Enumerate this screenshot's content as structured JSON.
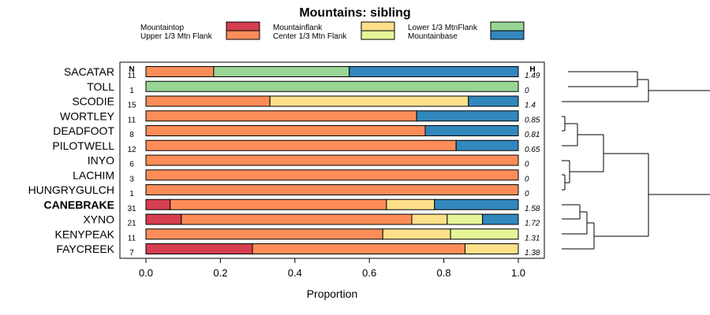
{
  "chart_data": {
    "type": "bar",
    "orientation": "horizontal-stacked",
    "title": "Mountains: sibling",
    "xlabel": "Proportion",
    "ylabel": "",
    "xlim": [
      0,
      1
    ],
    "xticks": [
      "0.0",
      "0.2",
      "0.4",
      "0.6",
      "0.8",
      "1.0"
    ],
    "xtick_values": [
      0,
      0.2,
      0.4,
      0.6,
      0.8,
      1.0
    ],
    "n_header": "N",
    "h_header": "H",
    "highlight_category": "CANEBRAKE",
    "legend": [
      {
        "label": "Mountaintop",
        "color": "#d53e4f"
      },
      {
        "label": "Upper 1/3 Mtn Flank",
        "color": "#fc8d59"
      },
      {
        "label": "Mountainflank",
        "color": "#fee08b"
      },
      {
        "label": "Center 1/3 Mtn Flank",
        "color": "#e6f598"
      },
      {
        "label": "Lower 1/3 MtnFlank",
        "color": "#99d594"
      },
      {
        "label": "Mountainbase",
        "color": "#3288bd"
      }
    ],
    "categories": [
      "SACATAR",
      "TOLL",
      "SCODIE",
      "WORTLEY",
      "DEADFOOT",
      "PILOTWELL",
      "INYO",
      "LACHIM",
      "HUNGRYGULCH",
      "CANEBRAKE",
      "XYNO",
      "KENYPEAK",
      "FAYCREEK"
    ],
    "n": [
      "11",
      "1",
      "15",
      "11",
      "8",
      "12",
      "6",
      "3",
      "1",
      "31",
      "21",
      "11",
      "7"
    ],
    "h": [
      "1.49",
      "0",
      "1.4",
      "0.85",
      "0.81",
      "0.65",
      "0",
      "0",
      "0",
      "1.58",
      "1.72",
      "1.31",
      "1.38"
    ],
    "series": [
      {
        "name": "Mountaintop",
        "values": [
          0,
          0,
          0,
          0,
          0,
          0,
          0,
          0,
          0,
          0.065,
          0.095,
          0,
          0.286
        ]
      },
      {
        "name": "Upper 1/3 Mtn Flank",
        "values": [
          0.182,
          0,
          0.333,
          0.727,
          0.75,
          0.833,
          1.0,
          1.0,
          1.0,
          0.581,
          0.619,
          0.636,
          0.571
        ]
      },
      {
        "name": "Mountainflank",
        "values": [
          0,
          0,
          0.533,
          0,
          0,
          0,
          0,
          0,
          0,
          0.129,
          0.095,
          0.182,
          0.143
        ]
      },
      {
        "name": "Center 1/3 Mtn Flank",
        "values": [
          0,
          0,
          0,
          0,
          0,
          0,
          0,
          0,
          0,
          0,
          0.095,
          0.182,
          0
        ]
      },
      {
        "name": "Lower 1/3 MtnFlank",
        "values": [
          0.364,
          1.0,
          0,
          0,
          0,
          0,
          0,
          0,
          0,
          0,
          0,
          0,
          0
        ]
      },
      {
        "name": "Mountainbase",
        "values": [
          0.454,
          0,
          0.134,
          0.273,
          0.25,
          0.167,
          0,
          0,
          0,
          0.225,
          0.096,
          0,
          0
        ]
      }
    ]
  }
}
